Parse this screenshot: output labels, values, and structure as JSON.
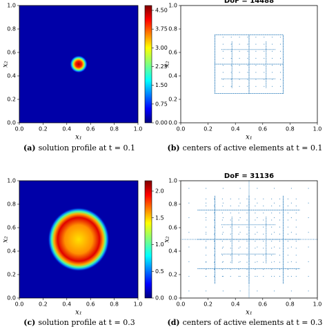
{
  "ticks": [
    "0.0",
    "0.2",
    "0.4",
    "0.6",
    "0.8",
    "1.0"
  ],
  "panels": [
    {
      "caption": {
        "label": "(a)",
        "text": "solution profile at t = 0.1"
      },
      "xlabel": "x₁",
      "ylabel": "x₂",
      "colorbar": [
        "4.50",
        "3.75",
        "3.00",
        "2.25",
        "1.50",
        "0.75",
        "0.00"
      ]
    },
    {
      "caption": {
        "label": "(b)",
        "text": "centers of active elements at t = 0.1"
      },
      "title": "DoF = 14488",
      "xlabel": "x₁",
      "ylabel": "x₂"
    },
    {
      "caption": {
        "label": "(c)",
        "text": "solution profile at t = 0.3"
      },
      "xlabel": "x₁",
      "ylabel": "x₂",
      "colorbar": [
        "2.0",
        "1.5",
        "1.0",
        "0.5",
        "0.0"
      ]
    },
    {
      "caption": {
        "label": "(d)",
        "text": "centers of active elements at t = 0.3"
      },
      "title": "DoF = 31136",
      "xlabel": "x₁",
      "ylabel": "x₂"
    }
  ]
}
